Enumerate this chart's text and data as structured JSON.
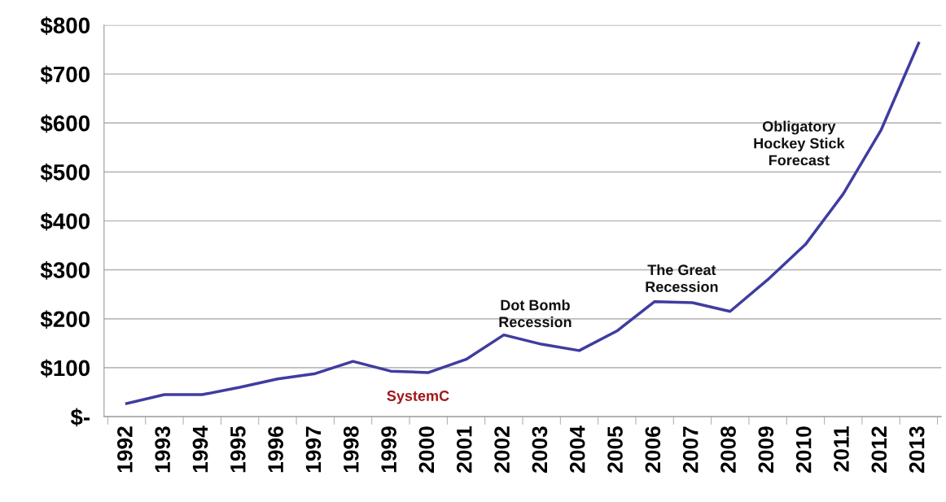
{
  "chart_data": {
    "type": "line",
    "categories": [
      "1992",
      "1993",
      "1994",
      "1995",
      "1996",
      "1997",
      "1998",
      "1999",
      "2000",
      "2001",
      "2002",
      "2003",
      "2004",
      "2005",
      "2006",
      "2007",
      "2008",
      "2009",
      "2010",
      "2011",
      "2012",
      "2013"
    ],
    "series": [
      {
        "color": "#3f3ca0",
        "values": [
          27,
          45,
          45,
          60,
          77,
          88,
          113,
          93,
          90,
          117,
          167,
          148,
          135,
          175,
          235,
          233,
          215,
          280,
          352,
          455,
          585,
          763
        ]
      }
    ],
    "ylim": [
      0,
      800
    ],
    "yticks": [
      {
        "value": 0,
        "label": "$-"
      },
      {
        "value": 100,
        "label": "$100"
      },
      {
        "value": 200,
        "label": "$200"
      },
      {
        "value": 300,
        "label": "$300"
      },
      {
        "value": 400,
        "label": "$400"
      },
      {
        "value": 500,
        "label": "$500"
      },
      {
        "value": 600,
        "label": "$600"
      },
      {
        "value": 700,
        "label": "$700"
      },
      {
        "value": 800,
        "label": "$800"
      }
    ],
    "grid": "y",
    "marker": "none",
    "line_style": "solid",
    "legend": false,
    "annotations": [
      "SystemC",
      "Dot Bomb\nRecession",
      "The Great\nRecession",
      "Obligatory\nHockey Stick\nForecast"
    ]
  }
}
